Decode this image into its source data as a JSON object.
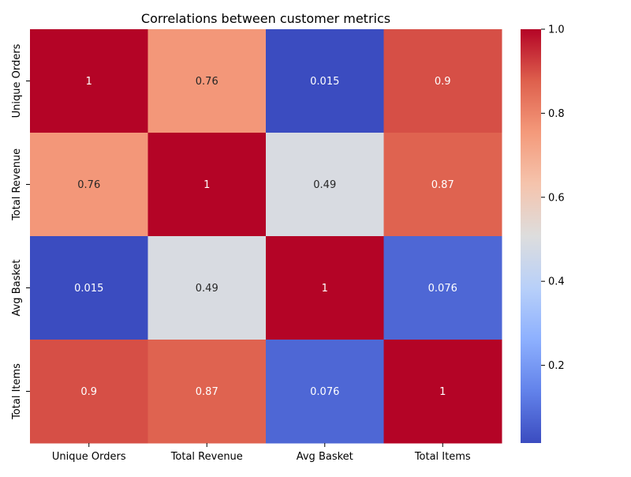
{
  "chart_data": {
    "type": "heatmap",
    "title": "Correlations between customer metrics",
    "rows": [
      "Unique Orders",
      "Total Revenue",
      "Avg Basket",
      "Total Items"
    ],
    "columns": [
      "Unique Orders",
      "Total Revenue",
      "Avg Basket",
      "Total Items"
    ],
    "values": [
      [
        1,
        0.76,
        0.015,
        0.9
      ],
      [
        0.76,
        1,
        0.49,
        0.87
      ],
      [
        0.015,
        0.49,
        1,
        0.076
      ],
      [
        0.9,
        0.87,
        0.076,
        1
      ]
    ],
    "labels": [
      [
        "1",
        "0.76",
        "0.015",
        "0.9"
      ],
      [
        "0.76",
        "1",
        "0.49",
        "0.87"
      ],
      [
        "0.015",
        "0.49",
        "1",
        "0.076"
      ],
      [
        "0.9",
        "0.87",
        "0.076",
        "1"
      ]
    ],
    "colormap": "coolwarm",
    "vmin": 0.015,
    "vmax": 1.0,
    "colorbar_ticks": [
      0.2,
      0.4,
      0.6,
      0.8,
      1.0
    ],
    "colorbar_tick_labels": [
      "0.2",
      "0.4",
      "0.6",
      "0.8",
      "1.0"
    ]
  }
}
